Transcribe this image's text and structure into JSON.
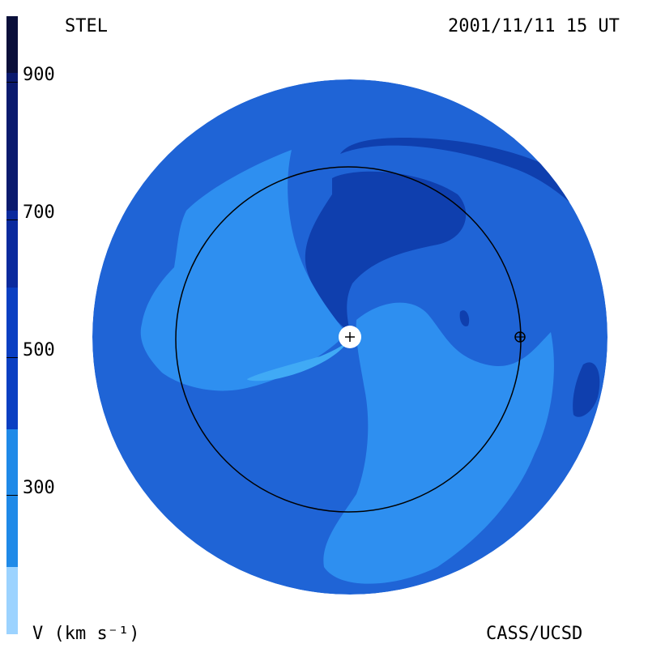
{
  "header": {
    "title": "STEL",
    "date": "2001/11/11 15 UT"
  },
  "footer": {
    "credit": "CASS/UCSD",
    "unit": "V (km s⁻¹)"
  },
  "colorbar": {
    "ticks": [
      "900",
      "700",
      "500",
      "300"
    ],
    "colors": [
      "#0a0f3a",
      "#0a1a6e",
      "#0a2a9e",
      "#0a3fc2",
      "#1a5fd0",
      "#1f8ae8",
      "#40aef5",
      "#9cd3ff"
    ]
  },
  "map": {
    "colors": {
      "base": "#1f64d6",
      "mid": "#2a7ae6",
      "light": "#2e8ff0",
      "lighter": "#40aaf5",
      "dark": "#0f3fae",
      "sun": "#ffffff"
    }
  }
}
